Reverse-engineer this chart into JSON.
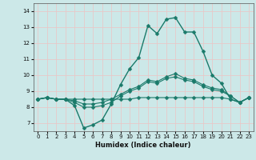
{
  "xlabel": "Humidex (Indice chaleur)",
  "xlim": [
    -0.5,
    23.5
  ],
  "ylim": [
    6.5,
    14.5
  ],
  "yticks": [
    7,
    8,
    9,
    10,
    11,
    12,
    13,
    14
  ],
  "xticks": [
    0,
    1,
    2,
    3,
    4,
    5,
    6,
    7,
    8,
    9,
    10,
    11,
    12,
    13,
    14,
    15,
    16,
    17,
    18,
    19,
    20,
    21,
    22,
    23
  ],
  "bg_color": "#cce8e8",
  "grid_color": "#e8c8c8",
  "line_color": "#1a7a6a",
  "lines": [
    [
      8.5,
      8.6,
      8.5,
      8.5,
      8.1,
      6.7,
      6.9,
      7.2,
      8.2,
      9.4,
      10.4,
      11.1,
      13.1,
      12.6,
      13.5,
      13.6,
      12.7,
      12.7,
      11.5,
      10.0,
      9.5,
      8.5,
      8.3,
      8.6
    ],
    [
      8.5,
      8.6,
      8.5,
      8.5,
      8.5,
      8.5,
      8.5,
      8.5,
      8.5,
      8.5,
      8.5,
      8.6,
      8.6,
      8.6,
      8.6,
      8.6,
      8.6,
      8.6,
      8.6,
      8.6,
      8.6,
      8.5,
      8.3,
      8.6
    ],
    [
      8.5,
      8.6,
      8.5,
      8.5,
      8.4,
      8.2,
      8.2,
      8.3,
      8.5,
      8.8,
      9.1,
      9.3,
      9.7,
      9.6,
      9.9,
      10.1,
      9.8,
      9.7,
      9.4,
      9.2,
      9.1,
      8.7,
      8.3,
      8.6
    ],
    [
      8.5,
      8.6,
      8.5,
      8.5,
      8.3,
      8.0,
      8.0,
      8.1,
      8.3,
      8.7,
      9.0,
      9.2,
      9.6,
      9.5,
      9.8,
      9.9,
      9.7,
      9.6,
      9.3,
      9.1,
      9.0,
      8.7,
      8.3,
      8.6
    ]
  ],
  "marker_size": 2.5
}
